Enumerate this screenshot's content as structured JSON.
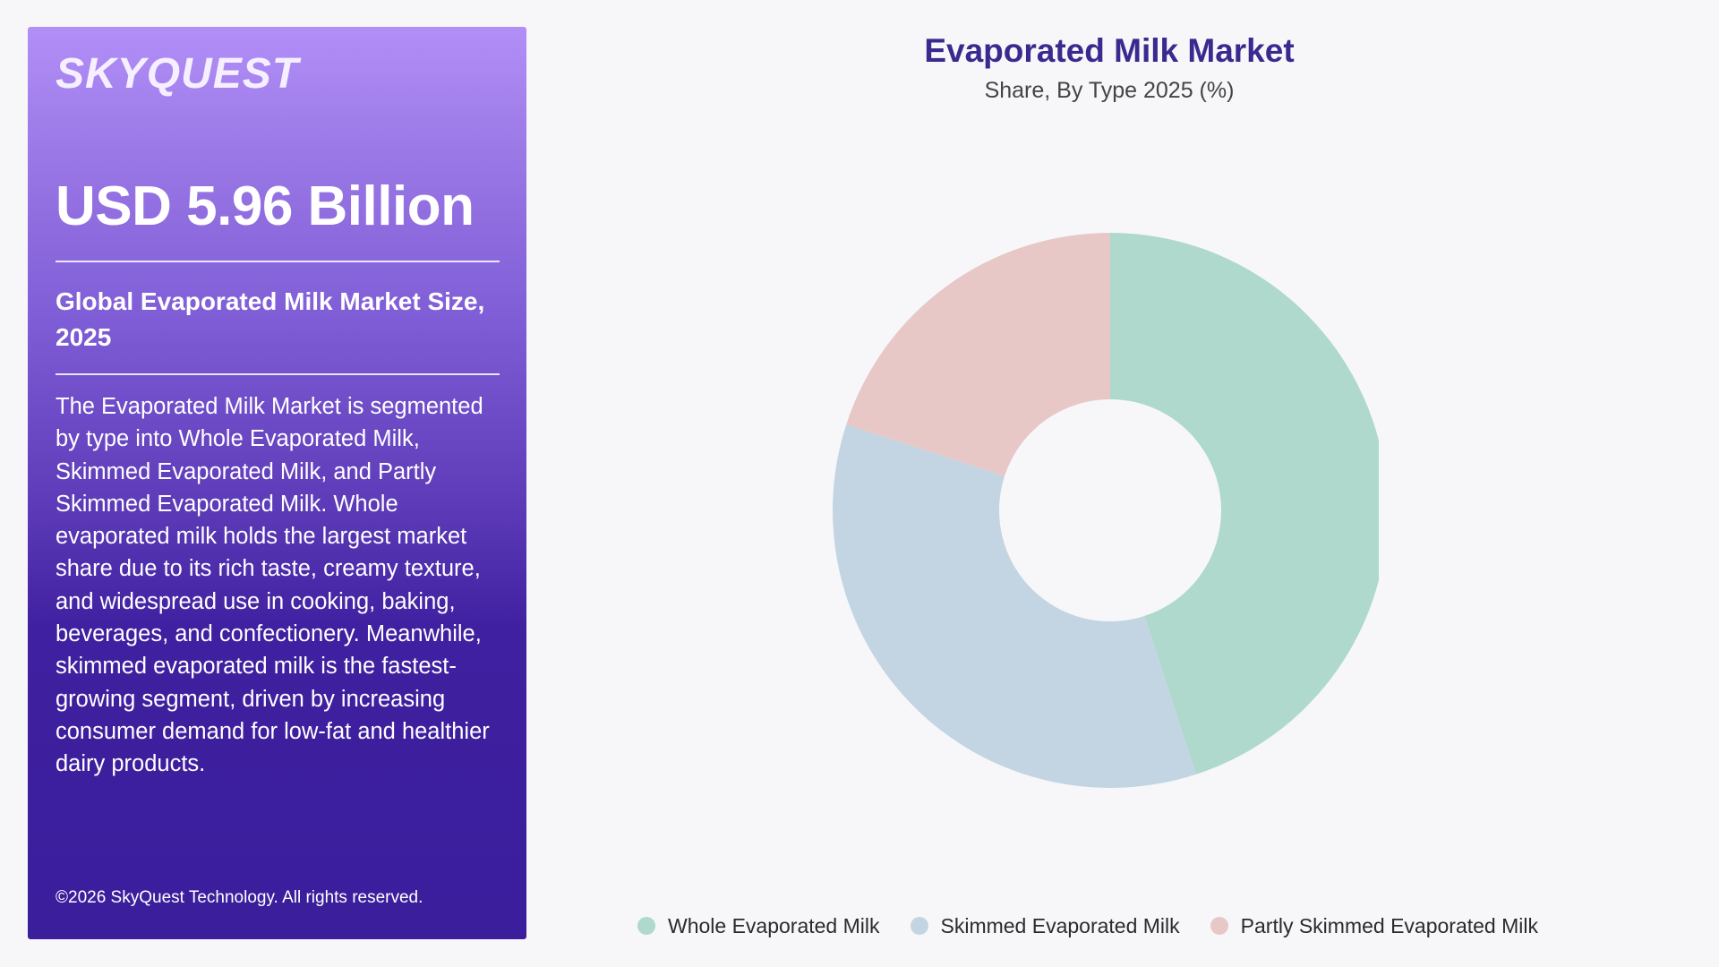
{
  "brand": {
    "logo_text": "SKYQUEST"
  },
  "summary": {
    "value": "USD 5.96 Billion",
    "subtitle": "Global Evaporated Milk Market Size, 2025",
    "description": "The Evaporated Milk Market is segmented by type into Whole Evaporated Milk, Skimmed Evaporated Milk, and Partly Skimmed Evaporated Milk. Whole evaporated milk holds the largest market share due to its rich taste, creamy texture, and widespread use in cooking, baking, beverages, and confectionery. Meanwhile, skimmed evaporated milk is the fastest-growing segment, driven by increasing consumer demand for low-fat and healthier dairy products.",
    "copyright": "©2026 SkyQuest Technology. All rights reserved."
  },
  "chart_data": {
    "type": "pie",
    "donut": true,
    "title": "Evaporated Milk Market",
    "subtitle": "Share, By Type 2025 (%)",
    "categories": [
      "Whole Evaporated Milk",
      "Skimmed Evaporated Milk",
      "Partly Skimmed Evaporated Milk"
    ],
    "values": [
      45,
      35,
      20
    ],
    "colors": [
      "#afd9cc",
      "#c3d5e2",
      "#e8c8c7"
    ],
    "legend_position": "bottom"
  }
}
